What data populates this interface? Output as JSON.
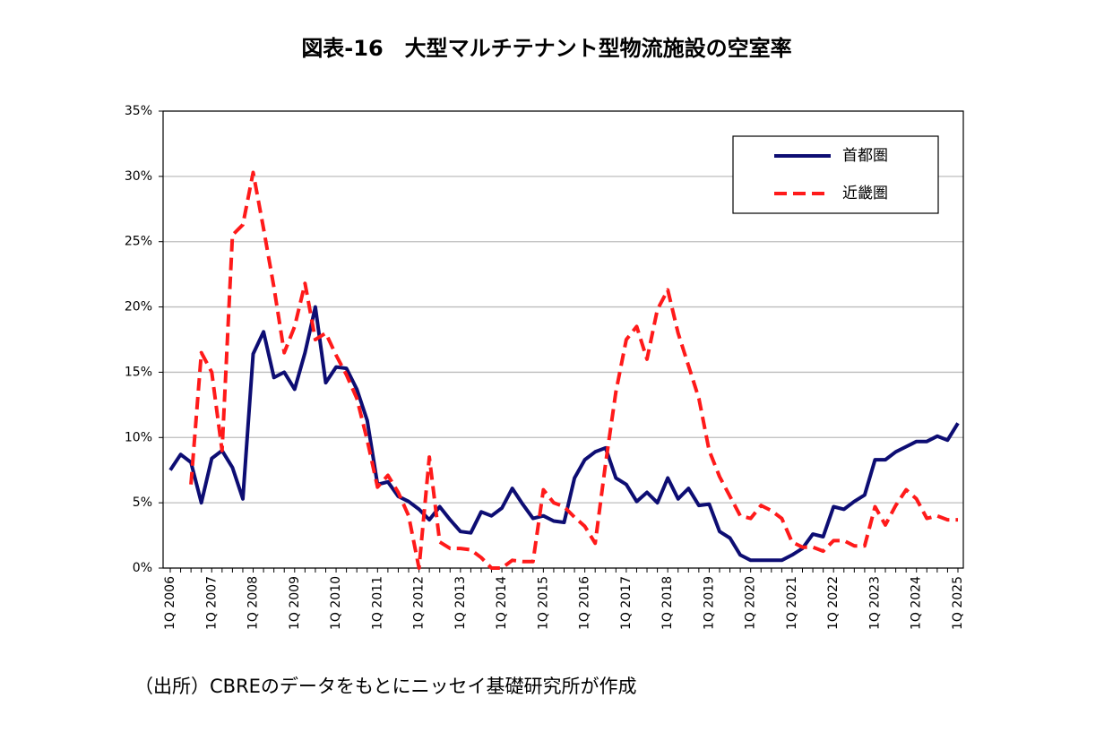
{
  "chart_data": {
    "type": "line",
    "title": "図表-16　大型マルチテナント型物流施設の空室率",
    "source": "（出所）CBREのデータをもとにニッセイ基礎研究所が作成",
    "categories": [
      "1Q 2006",
      null,
      null,
      null,
      "1Q 2007",
      null,
      null,
      null,
      "1Q 2008",
      null,
      null,
      null,
      "1Q 2009",
      null,
      null,
      null,
      "1Q 2010",
      null,
      null,
      null,
      "1Q 2011",
      null,
      null,
      null,
      "1Q 2012",
      null,
      null,
      null,
      "1Q 2013",
      null,
      null,
      null,
      "1Q 2014",
      null,
      null,
      null,
      "1Q 2015",
      null,
      null,
      null,
      "1Q 2016",
      null,
      null,
      null,
      "1Q 2017",
      null,
      null,
      null,
      "1Q 2018",
      null,
      null,
      null,
      "1Q 2019",
      null,
      null,
      null,
      "1Q 2020",
      null,
      null,
      null,
      "1Q 2021",
      null,
      null,
      null,
      "1Q 2022",
      null,
      null,
      null,
      "1Q 2023",
      null,
      null,
      null,
      "1Q 2024",
      null,
      null,
      null,
      "1Q 2025"
    ],
    "series": [
      {
        "name": "首都圏",
        "color": "#0d0d73",
        "dash": false,
        "values": [
          7.5,
          8.7,
          8.1,
          5.0,
          8.4,
          9.0,
          7.7,
          5.3,
          16.4,
          18.1,
          14.6,
          15.0,
          13.7,
          16.5,
          20.0,
          14.2,
          15.4,
          15.3,
          13.7,
          11.3,
          6.4,
          6.6,
          5.5,
          5.1,
          4.5,
          3.7,
          4.7,
          3.7,
          2.8,
          2.7,
          4.3,
          4.0,
          4.6,
          6.1,
          4.9,
          3.8,
          4.0,
          3.6,
          3.5,
          6.9,
          8.3,
          8.9,
          9.2,
          6.9,
          6.4,
          5.1,
          5.8,
          5.0,
          6.9,
          5.3,
          6.1,
          4.8,
          4.9,
          2.8,
          2.3,
          1.0,
          0.6,
          0.6,
          0.6,
          0.6,
          1.0,
          1.5,
          2.6,
          2.4,
          4.7,
          4.5,
          5.1,
          5.6,
          8.3,
          8.3,
          8.9,
          9.3,
          9.7,
          9.7,
          10.1,
          9.8,
          11.1
        ]
      },
      {
        "name": "近畿圏",
        "color": "#ff1a1a",
        "dash": true,
        "values": [
          null,
          null,
          6.4,
          16.5,
          15.0,
          9.0,
          25.5,
          26.3,
          30.3,
          26.0,
          21.5,
          16.5,
          18.5,
          21.8,
          17.5,
          18.0,
          16.3,
          14.8,
          13.0,
          9.8,
          6.2,
          7.1,
          5.8,
          4.0,
          0.0,
          8.5,
          2.0,
          1.5,
          1.5,
          1.4,
          0.8,
          0.0,
          0.0,
          0.6,
          0.5,
          0.5,
          6.0,
          5.0,
          4.7,
          3.9,
          3.2,
          1.9,
          8.0,
          13.5,
          17.5,
          18.5,
          16.0,
          19.8,
          21.3,
          18.0,
          15.5,
          13.0,
          9.0,
          7.0,
          5.5,
          4.0,
          3.8,
          4.8,
          4.4,
          3.8,
          2.0,
          1.6,
          1.6,
          1.3,
          2.1,
          2.1,
          1.7,
          1.7,
          4.7,
          3.3,
          4.8,
          6.0,
          5.3,
          3.8,
          4.0,
          3.7,
          3.7
        ]
      }
    ],
    "ylim": [
      0,
      35
    ],
    "yticks": [
      {
        "value": 0,
        "label": "0%"
      },
      {
        "value": 5,
        "label": "5%"
      },
      {
        "value": 10,
        "label": "10%"
      },
      {
        "value": 15,
        "label": "15%"
      },
      {
        "value": 20,
        "label": "20%"
      },
      {
        "value": 25,
        "label": "25%"
      },
      {
        "value": 30,
        "label": "30%"
      },
      {
        "value": 35,
        "label": "35%"
      }
    ],
    "grid": true,
    "legend": "upper right"
  }
}
